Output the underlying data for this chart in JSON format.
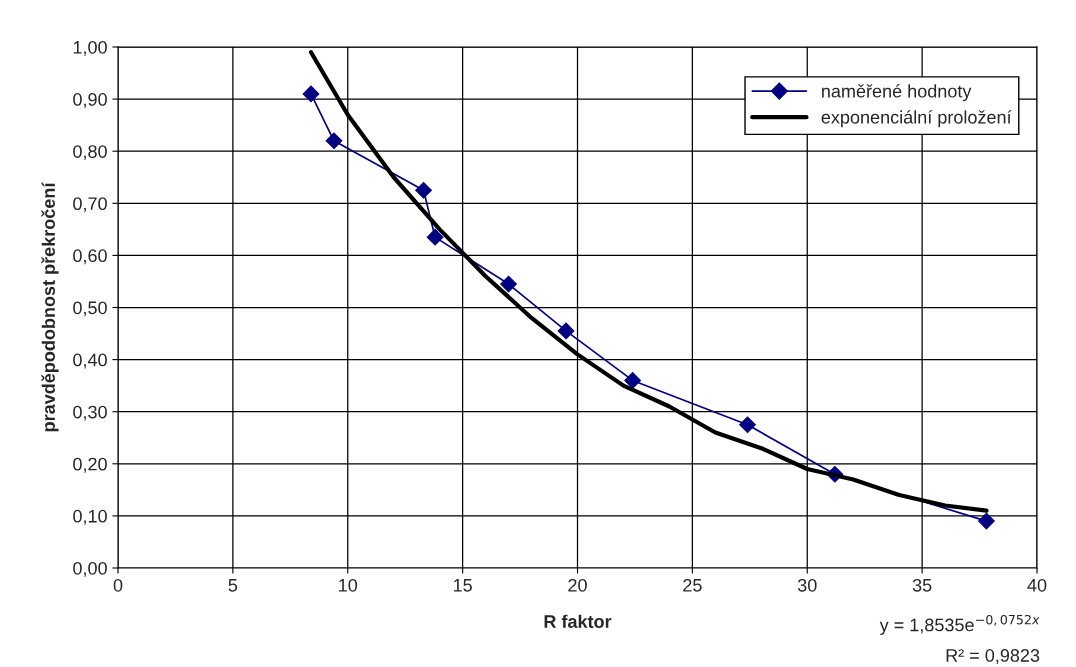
{
  "chart_data": {
    "type": "line",
    "xlabel": "R faktor",
    "ylabel": "pravděpodobnost překročení",
    "series": [
      {
        "name": "naměřené hodnoty",
        "color": "#000080",
        "marker": "diamond",
        "x": [
          8.4,
          9.4,
          13.3,
          13.8,
          17.0,
          19.5,
          22.4,
          27.4,
          31.2,
          37.8
        ],
        "values": [
          0.91,
          0.82,
          0.725,
          0.635,
          0.545,
          0.455,
          0.36,
          0.275,
          0.18,
          0.09
        ]
      },
      {
        "name": "exponenciální proložení",
        "color": "#000000",
        "marker": "none",
        "x": [
          8.4,
          10,
          12,
          14,
          16,
          18,
          20,
          22,
          24,
          26,
          28,
          30,
          32,
          34,
          36,
          37.8
        ],
        "values": [
          0.99,
          0.87,
          0.75,
          0.65,
          0.56,
          0.48,
          0.41,
          0.35,
          0.31,
          0.26,
          0.23,
          0.19,
          0.17,
          0.14,
          0.12,
          0.11
        ]
      }
    ],
    "xlim": [
      0,
      40
    ],
    "xticks": [
      0,
      5,
      10,
      15,
      20,
      25,
      30,
      35,
      40
    ],
    "ylim": [
      0,
      1
    ],
    "yticks": [
      {
        "value": 0,
        "label": "0,00"
      },
      {
        "value": 0.1,
        "label": "0,10"
      },
      {
        "value": 0.2,
        "label": "0,20"
      },
      {
        "value": 0.3,
        "label": "0,30"
      },
      {
        "value": 0.4,
        "label": "0,40"
      },
      {
        "value": 0.5,
        "label": "0,50"
      },
      {
        "value": 0.6,
        "label": "0,60"
      },
      {
        "value": 0.7,
        "label": "0,70"
      },
      {
        "value": 0.8,
        "label": "0,80"
      },
      {
        "value": 0.9,
        "label": "0,90"
      },
      {
        "value": 1,
        "label": "1,00"
      }
    ],
    "grid": true,
    "legend": "top right",
    "annotations": [
      "y = 1,8535e$^{−0,0752x}$",
      "R² = 0,9823"
    ]
  }
}
